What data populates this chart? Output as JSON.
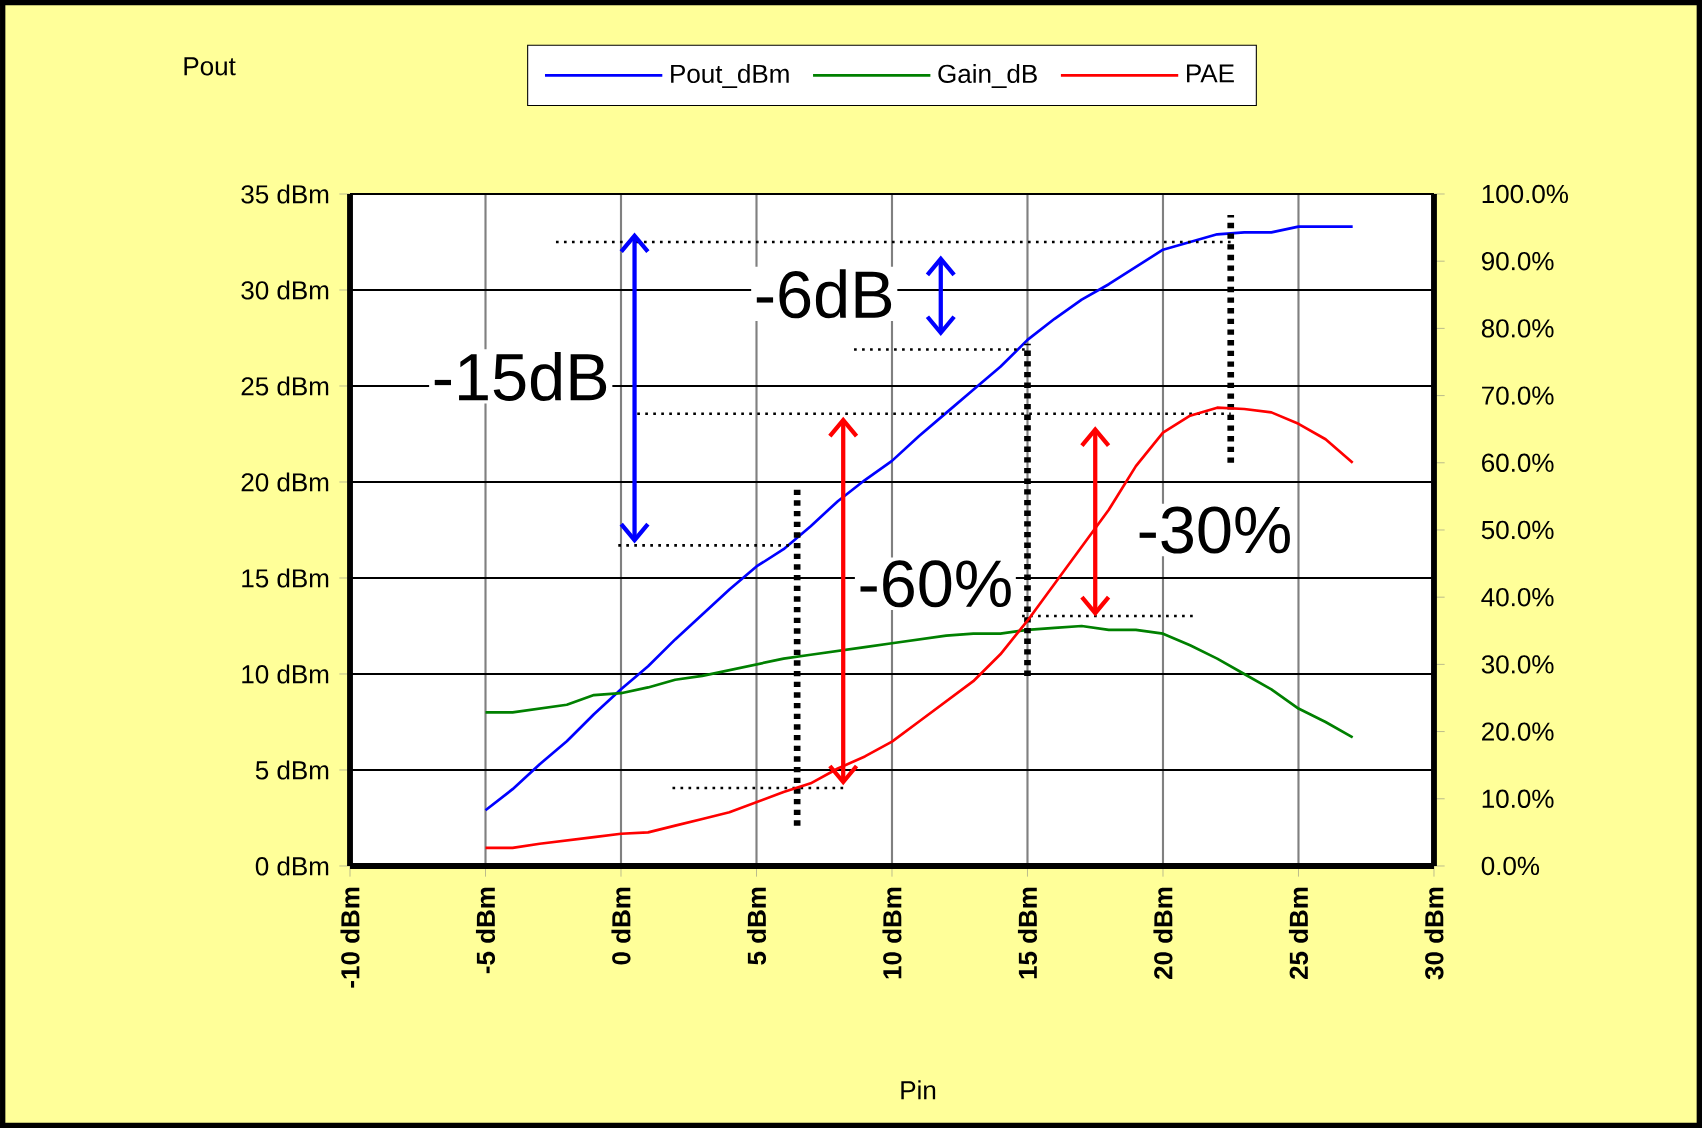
{
  "chart_data": {
    "type": "line",
    "xlabel": "Pin",
    "ylabel": "Pout",
    "x": [
      -5,
      -4,
      -3,
      -2,
      -1,
      0,
      1,
      2,
      3,
      4,
      5,
      6,
      7,
      8,
      9,
      10,
      11,
      12,
      13,
      14,
      15,
      16,
      17,
      18,
      19,
      20,
      21,
      22,
      23,
      24,
      25,
      26,
      27
    ],
    "series": [
      {
        "name": "Pout_dBm",
        "color": "#0000ff",
        "values": [
          2.9,
          4.0,
          5.3,
          6.5,
          7.9,
          9.2,
          10.4,
          11.8,
          13.1,
          14.4,
          15.6,
          16.5,
          17.7,
          19.0,
          20.1,
          21.1,
          22.4,
          23.6,
          24.8,
          26.0,
          27.4,
          28.5,
          29.5,
          30.3,
          31.2,
          32.1,
          32.5,
          32.9,
          33.0,
          33.0,
          33.3,
          33.3,
          33.3
        ]
      },
      {
        "name": "Gain_dB",
        "color": "#008000",
        "values": [
          8.0,
          8.0,
          8.2,
          8.4,
          8.9,
          9.0,
          9.3,
          9.7,
          9.9,
          10.2,
          10.5,
          10.8,
          11.0,
          11.2,
          11.4,
          11.6,
          11.8,
          12.0,
          12.1,
          12.1,
          12.3,
          12.4,
          12.5,
          12.3,
          12.3,
          12.1,
          11.5,
          10.8,
          10.0,
          9.2,
          8.2,
          7.5,
          6.7
        ]
      },
      {
        "name": "PAE",
        "color": "#ff0000",
        "axis": "y2",
        "values": [
          2.7,
          2.7,
          3.3,
          3.8,
          4.3,
          4.8,
          5.0,
          6.0,
          7.0,
          8.0,
          9.5,
          11.0,
          12.3,
          14.5,
          16.3,
          18.5,
          21.5,
          24.5,
          27.5,
          31.5,
          36.5,
          42.0,
          47.5,
          53.0,
          59.5,
          64.5,
          67.0,
          68.2,
          68.0,
          67.5,
          65.8,
          63.5,
          60.0
        ]
      }
    ],
    "xlim": [
      -10,
      30
    ],
    "xticks": [
      {
        "value": -10,
        "label": "-10 dBm"
      },
      {
        "value": -5,
        "label": "-5 dBm"
      },
      {
        "value": 0,
        "label": "0 dBm"
      },
      {
        "value": 5,
        "label": "5 dBm"
      },
      {
        "value": 10,
        "label": "10 dBm"
      },
      {
        "value": 15,
        "label": "15 dBm"
      },
      {
        "value": 20,
        "label": "20 dBm"
      },
      {
        "value": 25,
        "label": "25 dBm"
      },
      {
        "value": 30,
        "label": "30 dBm"
      }
    ],
    "ylim": [
      0,
      35
    ],
    "yticks": [
      {
        "value": 0,
        "label": "0 dBm"
      },
      {
        "value": 5,
        "label": "5 dBm"
      },
      {
        "value": 10,
        "label": "10 dBm"
      },
      {
        "value": 15,
        "label": "15 dBm"
      },
      {
        "value": 20,
        "label": "20 dBm"
      },
      {
        "value": 25,
        "label": "25 dBm"
      },
      {
        "value": 30,
        "label": "30 dBm"
      },
      {
        "value": 35,
        "label": "35 dBm"
      }
    ],
    "y2lim": [
      0,
      100
    ],
    "y2ticks": [
      {
        "value": 0,
        "label": "0.0%"
      },
      {
        "value": 10,
        "label": "10.0%"
      },
      {
        "value": 20,
        "label": "20.0%"
      },
      {
        "value": 30,
        "label": "30.0%"
      },
      {
        "value": 40,
        "label": "40.0%"
      },
      {
        "value": 50,
        "label": "50.0%"
      },
      {
        "value": 60,
        "label": "60.0%"
      },
      {
        "value": 70,
        "label": "70.0%"
      },
      {
        "value": 80,
        "label": "80.0%"
      },
      {
        "value": 90,
        "label": "90.0%"
      },
      {
        "value": 100,
        "label": "100.0%"
      }
    ],
    "annotations": [
      "-15dB",
      "-6dB",
      "-60%",
      "-30%"
    ],
    "ref_lines": [
      {
        "axis": "y",
        "value": 32.5,
        "line_style": "dotted"
      },
      {
        "axis": "y",
        "value": 26.9,
        "line_style": "dotted"
      },
      {
        "axis": "y2",
        "value": 67.3,
        "line_style": "dotted"
      },
      {
        "axis": "y",
        "value": 16.7,
        "line_style": "dotted"
      },
      {
        "axis": "y2",
        "value": 11.6,
        "line_style": "dotted"
      },
      {
        "axis": "y2",
        "value": 37.2,
        "line_style": "dotted"
      },
      {
        "axis": "x",
        "value": 6.5,
        "line_style": "dotted"
      },
      {
        "axis": "x",
        "value": 15,
        "line_style": "dotted"
      },
      {
        "axis": "x",
        "value": 22.5,
        "line_style": "dotted"
      }
    ],
    "grid": true,
    "legend": "top"
  }
}
